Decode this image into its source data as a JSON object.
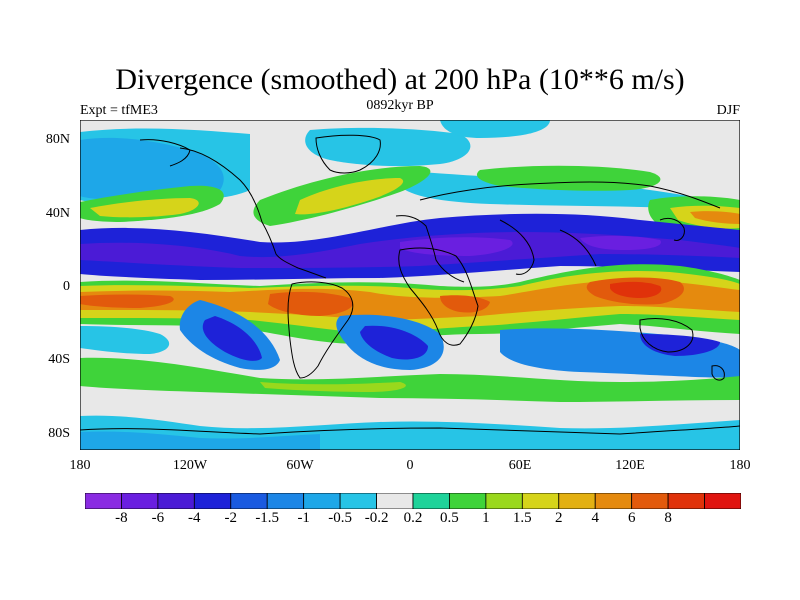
{
  "title": "Divergence (smoothed) at 200 hPa (10**6 m/s)",
  "subtitle_left": "Expt = tfME3",
  "subtitle_center": "0892kyr BP",
  "subtitle_right": "DJF",
  "lat_labels": [
    "80N",
    "40N",
    "0",
    "40S",
    "80S"
  ],
  "lon_labels": [
    "180",
    "120W",
    "60W",
    "0",
    "60E",
    "120E",
    "180"
  ],
  "colorbar": {
    "colors": [
      "#8a2be2",
      "#6a1fe0",
      "#4b1bd6",
      "#1e22d8",
      "#1a5ae0",
      "#1c86e6",
      "#1ea7e8",
      "#27c4e6",
      "#e8e8e8",
      "#1fd39a",
      "#3fd33a",
      "#9ad81c",
      "#d6d41a",
      "#e3b012",
      "#e58a0e",
      "#e25a0c",
      "#e0320a",
      "#e01410"
    ],
    "labels": [
      "-8",
      "-6",
      "-4",
      "-2",
      "-1.5",
      "-1",
      "-0.5",
      "-0.2",
      "0.2",
      "0.5",
      "1",
      "1.5",
      "2",
      "4",
      "6",
      "8"
    ]
  }
}
